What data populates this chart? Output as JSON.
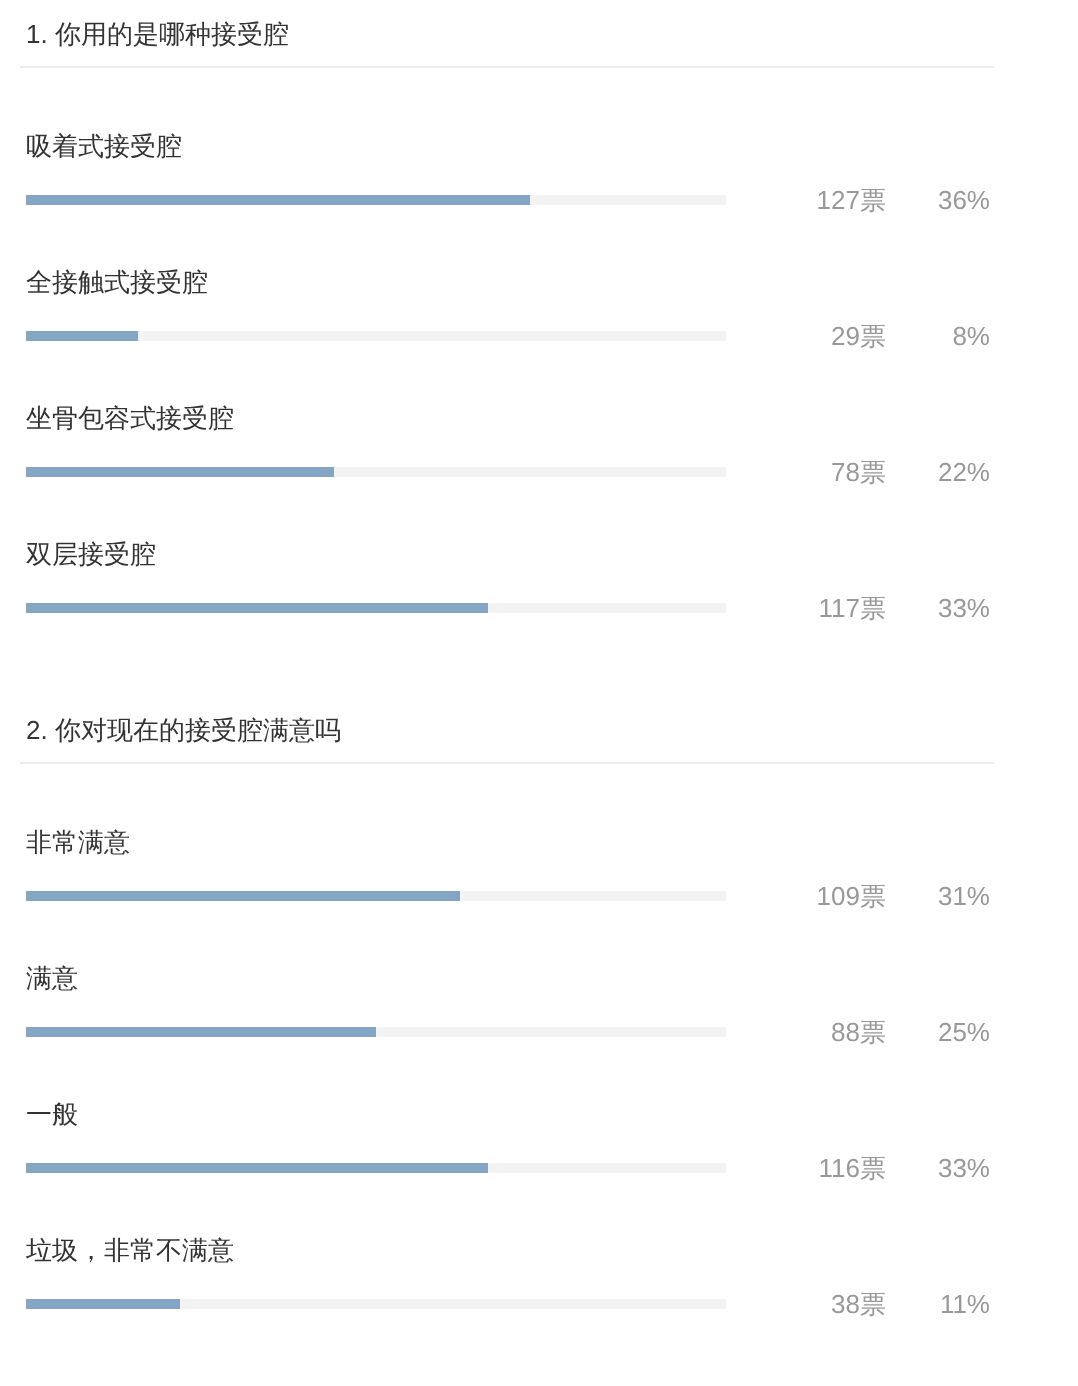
{
  "chart_data": [
    {
      "type": "bar",
      "orientation": "horizontal",
      "title": "1. 你用的是哪种接受腔",
      "categories": [
        "吸着式接受腔",
        "全接触式接受腔",
        "坐骨包容式接受腔",
        "双层接受腔"
      ],
      "values": [
        36,
        8,
        22,
        33
      ],
      "value_labels": [
        "36%",
        "8%",
        "22%",
        "33%"
      ],
      "color": "#84a5c3",
      "xlim": [
        0,
        50
      ],
      "tick_labels": "y",
      "annotations": [
        "127票",
        "29票",
        "78票",
        "117票"
      ]
    },
    {
      "type": "bar",
      "orientation": "horizontal",
      "title": "2. 你对现在的接受腔满意吗",
      "categories": [
        "非常满意",
        "满意",
        "一般",
        "垃圾，非常不满意"
      ],
      "values": [
        31,
        25,
        33,
        11
      ],
      "value_labels": [
        "31%",
        "25%",
        "33%",
        "11%"
      ],
      "color": "#84a5c3",
      "xlim": [
        0,
        50
      ],
      "tick_labels": "y",
      "annotations": [
        "109票",
        "88票",
        "116票",
        "38票"
      ]
    }
  ]
}
